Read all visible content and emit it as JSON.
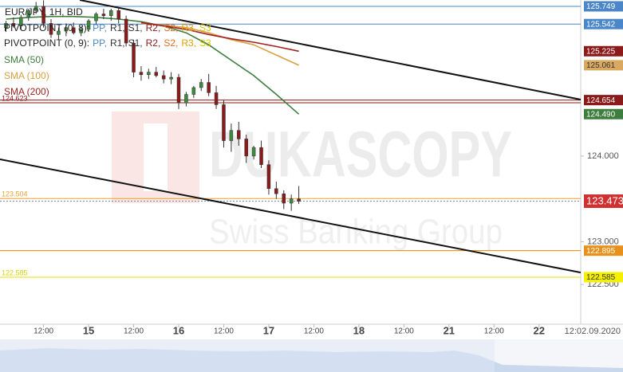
{
  "chart_data": {
    "type": "candlestick",
    "title": "EUR/JPY, 1H, BID",
    "watermark": {
      "brand": "DUKASCOPY",
      "tagline": "Swiss Banking Group"
    },
    "legend": [
      {
        "prefix": "PIVOTPOINT (0, 8):",
        "items": [
          {
            "text": "PP,",
            "color": "#4a86c8"
          },
          {
            "text": "R1,",
            "color": "#333333"
          },
          {
            "text": "S1,",
            "color": "#333333"
          },
          {
            "text": "R2,",
            "color": "#8b1a1a"
          },
          {
            "text": "S2,",
            "color": "#e07020"
          },
          {
            "text": "R3,",
            "color": "#e0a000"
          },
          {
            "text": "S3",
            "color": "#d8c800"
          }
        ]
      },
      {
        "prefix": "PIVOTPOINT (0, 9):",
        "items": [
          {
            "text": "PP,",
            "color": "#4a86c8"
          },
          {
            "text": "R1,",
            "color": "#333333"
          },
          {
            "text": "S1,",
            "color": "#333333"
          },
          {
            "text": "R2,",
            "color": "#8b1a1a"
          },
          {
            "text": "S2,",
            "color": "#e07020"
          },
          {
            "text": "R3,",
            "color": "#e0a000"
          },
          {
            "text": "S3",
            "color": "#d8c800"
          }
        ]
      }
    ],
    "up_color": "#3d8b3d",
    "down_color": "#8b1a1a",
    "x": [
      -22,
      -20,
      -18,
      -16,
      -14,
      -12,
      -10,
      -8,
      -6,
      -4,
      -2,
      0,
      2,
      4,
      6,
      8,
      10,
      12,
      14,
      16,
      18,
      20,
      22,
      24,
      26,
      28,
      30,
      32,
      34,
      36,
      38,
      40,
      42,
      44,
      46,
      48,
      50,
      52,
      54,
      56
    ],
    "open": [
      125.5,
      125.55,
      125.52,
      125.62,
      125.7,
      125.75,
      125.55,
      125.42,
      125.46,
      125.5,
      125.44,
      125.48,
      125.58,
      125.66,
      125.64,
      125.7,
      125.6,
      125.32,
      124.98,
      124.95,
      124.98,
      124.94,
      124.9,
      124.92,
      124.62,
      124.72,
      124.8,
      124.86,
      124.74,
      124.6,
      124.18,
      124.3,
      124.2,
      124.0,
      124.1,
      123.9,
      123.62,
      123.56,
      123.45,
      123.5
    ],
    "high": [
      125.58,
      125.62,
      125.65,
      125.72,
      125.8,
      125.82,
      125.6,
      125.5,
      125.55,
      125.56,
      125.52,
      125.6,
      125.68,
      125.72,
      125.72,
      125.74,
      125.64,
      125.36,
      125.05,
      125.02,
      125.04,
      125.0,
      124.98,
      124.96,
      124.75,
      124.82,
      124.9,
      124.96,
      124.82,
      124.65,
      124.38,
      124.4,
      124.25,
      124.12,
      124.18,
      123.95,
      123.7,
      123.6,
      123.55,
      123.65
    ],
    "low": [
      125.45,
      125.5,
      125.48,
      125.58,
      125.66,
      125.5,
      125.38,
      125.36,
      125.4,
      125.42,
      125.4,
      125.45,
      125.54,
      125.6,
      125.58,
      125.55,
      125.28,
      124.92,
      124.88,
      124.9,
      124.92,
      124.85,
      124.84,
      124.55,
      124.58,
      124.68,
      124.76,
      124.7,
      124.55,
      124.1,
      124.05,
      124.12,
      123.92,
      123.96,
      123.86,
      123.55,
      123.5,
      123.38,
      123.36,
      123.44
    ],
    "close": [
      125.55,
      125.52,
      125.62,
      125.7,
      125.75,
      125.55,
      125.42,
      125.46,
      125.5,
      125.44,
      125.48,
      125.58,
      125.66,
      125.64,
      125.7,
      125.6,
      125.32,
      124.98,
      124.95,
      124.98,
      124.94,
      124.9,
      124.92,
      124.62,
      124.72,
      124.8,
      124.86,
      124.74,
      124.6,
      124.18,
      124.3,
      124.2,
      124.0,
      124.1,
      123.9,
      123.62,
      123.56,
      123.45,
      123.5,
      123.473
    ],
    "series": [
      {
        "name": "SMA (50)",
        "color": "#3d7d3d",
        "x": [
          -22,
          -16,
          -10,
          -4,
          2,
          8,
          14,
          20,
          26,
          32,
          38,
          44,
          50,
          56
        ],
        "values": [
          125.6,
          125.62,
          125.63,
          125.63,
          125.62,
          125.6,
          125.57,
          125.52,
          125.44,
          125.3,
          125.12,
          124.94,
          124.72,
          124.49
        ]
      },
      {
        "name": "SMA (100)",
        "color": "#d9a040",
        "x": [
          14,
          20,
          26,
          32,
          38,
          44,
          50,
          56
        ],
        "values": [
          125.55,
          125.53,
          125.5,
          125.44,
          125.36,
          125.3,
          125.18,
          125.061
        ]
      },
      {
        "name": "SMA (200)",
        "color": "#a02020",
        "x": [
          14,
          20,
          26,
          32,
          38,
          44,
          50,
          56
        ],
        "values": [
          125.56,
          125.52,
          125.48,
          125.42,
          125.37,
          125.33,
          125.28,
          125.225
        ]
      }
    ],
    "trendlines": [
      {
        "x": [
          -2.34,
          131.1
        ],
        "y": [
          125.823,
          124.66
        ]
      },
      {
        "x": [
          -23.6,
          131.1
        ],
        "y": [
          123.962,
          122.64
        ]
      }
    ],
    "levels": [
      {
        "value": 125.749,
        "color": "#4a86c8"
      },
      {
        "value": 125.542,
        "color": "#4a86c8"
      },
      {
        "value": 124.654,
        "color": "#8b1a1a"
      },
      {
        "value": 124.623,
        "color": "#8b1a1a"
      },
      {
        "value": 123.504,
        "color": "#e8a030"
      },
      {
        "value": 122.895,
        "color": "#e08a00"
      },
      {
        "value": 122.585,
        "color": "#e8e000"
      },
      {
        "value": 123.473,
        "color": "#c03030",
        "dashed": true
      }
    ],
    "left_labels": [
      {
        "value": 124.623,
        "color": "#8b1a1a"
      },
      {
        "value": 123.504,
        "color": "#e8a030"
      },
      {
        "value": 122.585,
        "color": "#d8d000"
      }
    ],
    "price_labels": [
      {
        "value": 125.749,
        "bg": "#4a86c8",
        "fg": "#ffffff"
      },
      {
        "value": 125.542,
        "bg": "#4a86c8",
        "fg": "#ffffff"
      },
      {
        "value": 125.225,
        "bg": "#8b1a1a",
        "fg": "#ffffff"
      },
      {
        "value": 125.061,
        "bg": "#d9a960",
        "fg": "#333333"
      },
      {
        "value": 124.654,
        "bg": "#8b1a1a",
        "fg": "#ffffff"
      },
      {
        "value": 124.49,
        "label": "124.490",
        "bg": "#3d7d3d",
        "fg": "#ffffff"
      },
      {
        "value": 123.473,
        "bg": "#d03030",
        "fg": "#ffffff"
      },
      {
        "value": 122.895,
        "bg": "#e8901a",
        "fg": "#ffffff"
      },
      {
        "value": 122.585,
        "bg": "#f4f000",
        "fg": "#333333"
      }
    ],
    "ylim": [
      122.036,
      125.823
    ],
    "yticks": [
      {
        "value": 124,
        "label": "124.000"
      },
      {
        "value": 123,
        "label": "123.000"
      },
      {
        "value": 122.5,
        "label": "122.500"
      }
    ],
    "xlim": [
      -23.6,
      131.1
    ],
    "xticks": [
      {
        "value": -12,
        "label": "12:00"
      },
      {
        "value": 0,
        "label": "15"
      },
      {
        "value": 12,
        "label": "12:00"
      },
      {
        "value": 24,
        "label": "16"
      },
      {
        "value": 36,
        "label": "12:00"
      },
      {
        "value": 48,
        "label": "17"
      },
      {
        "value": 60,
        "label": "12:00"
      },
      {
        "value": 72,
        "label": "18"
      },
      {
        "value": 84,
        "label": "12:00"
      },
      {
        "value": 96,
        "label": "21"
      },
      {
        "value": 108,
        "label": "12:00"
      },
      {
        "value": 120,
        "label": "22"
      }
    ],
    "x_end_label": "12:02.09.2020"
  }
}
